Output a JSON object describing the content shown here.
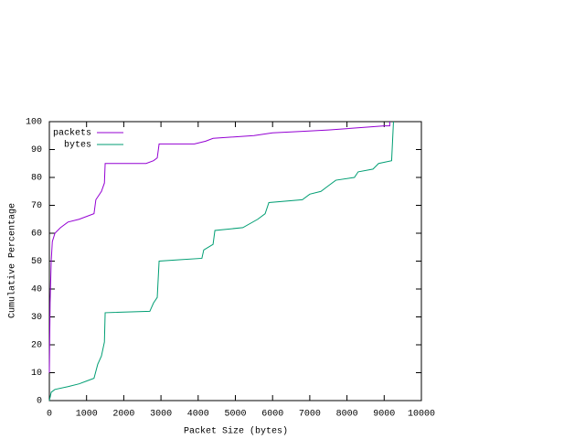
{
  "chart_data": {
    "type": "line",
    "xlabel": "Packet Size (bytes)",
    "ylabel": "Cumulative Percentage",
    "xlim": [
      0,
      10000
    ],
    "xticks": [
      0,
      1000,
      2000,
      3000,
      4000,
      5000,
      6000,
      7000,
      8000,
      9000,
      10000
    ],
    "ylim": [
      0,
      100
    ],
    "yticks": [
      0,
      10,
      20,
      30,
      40,
      50,
      60,
      70,
      80,
      90,
      100
    ],
    "legend": "top-left",
    "series": [
      {
        "name": "packets",
        "color": "#9400d3",
        "x": [
          0,
          20,
          50,
          80,
          150,
          300,
          500,
          800,
          1200,
          1250,
          1400,
          1480,
          1500,
          2600,
          2800,
          2900,
          2950,
          3900,
          4200,
          4400,
          5500,
          6000,
          6800,
          7500,
          8500,
          9000,
          9150,
          9150
        ],
        "values": [
          10,
          35,
          50,
          57,
          60,
          62,
          64,
          65,
          67,
          72,
          75,
          78,
          85,
          85,
          86,
          87,
          92,
          92,
          93,
          94,
          95,
          96,
          96.5,
          97,
          98,
          98.5,
          98.5,
          100
        ]
      },
      {
        "name": "bytes",
        "color": "#009e73",
        "x": [
          0,
          50,
          150,
          500,
          800,
          1000,
          1200,
          1300,
          1400,
          1480,
          1500,
          2700,
          2800,
          2900,
          2950,
          3500,
          4100,
          4150,
          4400,
          4450,
          5200,
          5600,
          5800,
          5900,
          6800,
          7000,
          7300,
          7500,
          7700,
          8200,
          8300,
          8700,
          8850,
          9200,
          9250
        ],
        "values": [
          0,
          3,
          4,
          5,
          6,
          7,
          8,
          13,
          16,
          21,
          31.5,
          32,
          35,
          37,
          50,
          50.5,
          51,
          54,
          56,
          61,
          62,
          65,
          67,
          71,
          72,
          74,
          75,
          77,
          79,
          80,
          82,
          83,
          85,
          86,
          100
        ]
      }
    ]
  }
}
